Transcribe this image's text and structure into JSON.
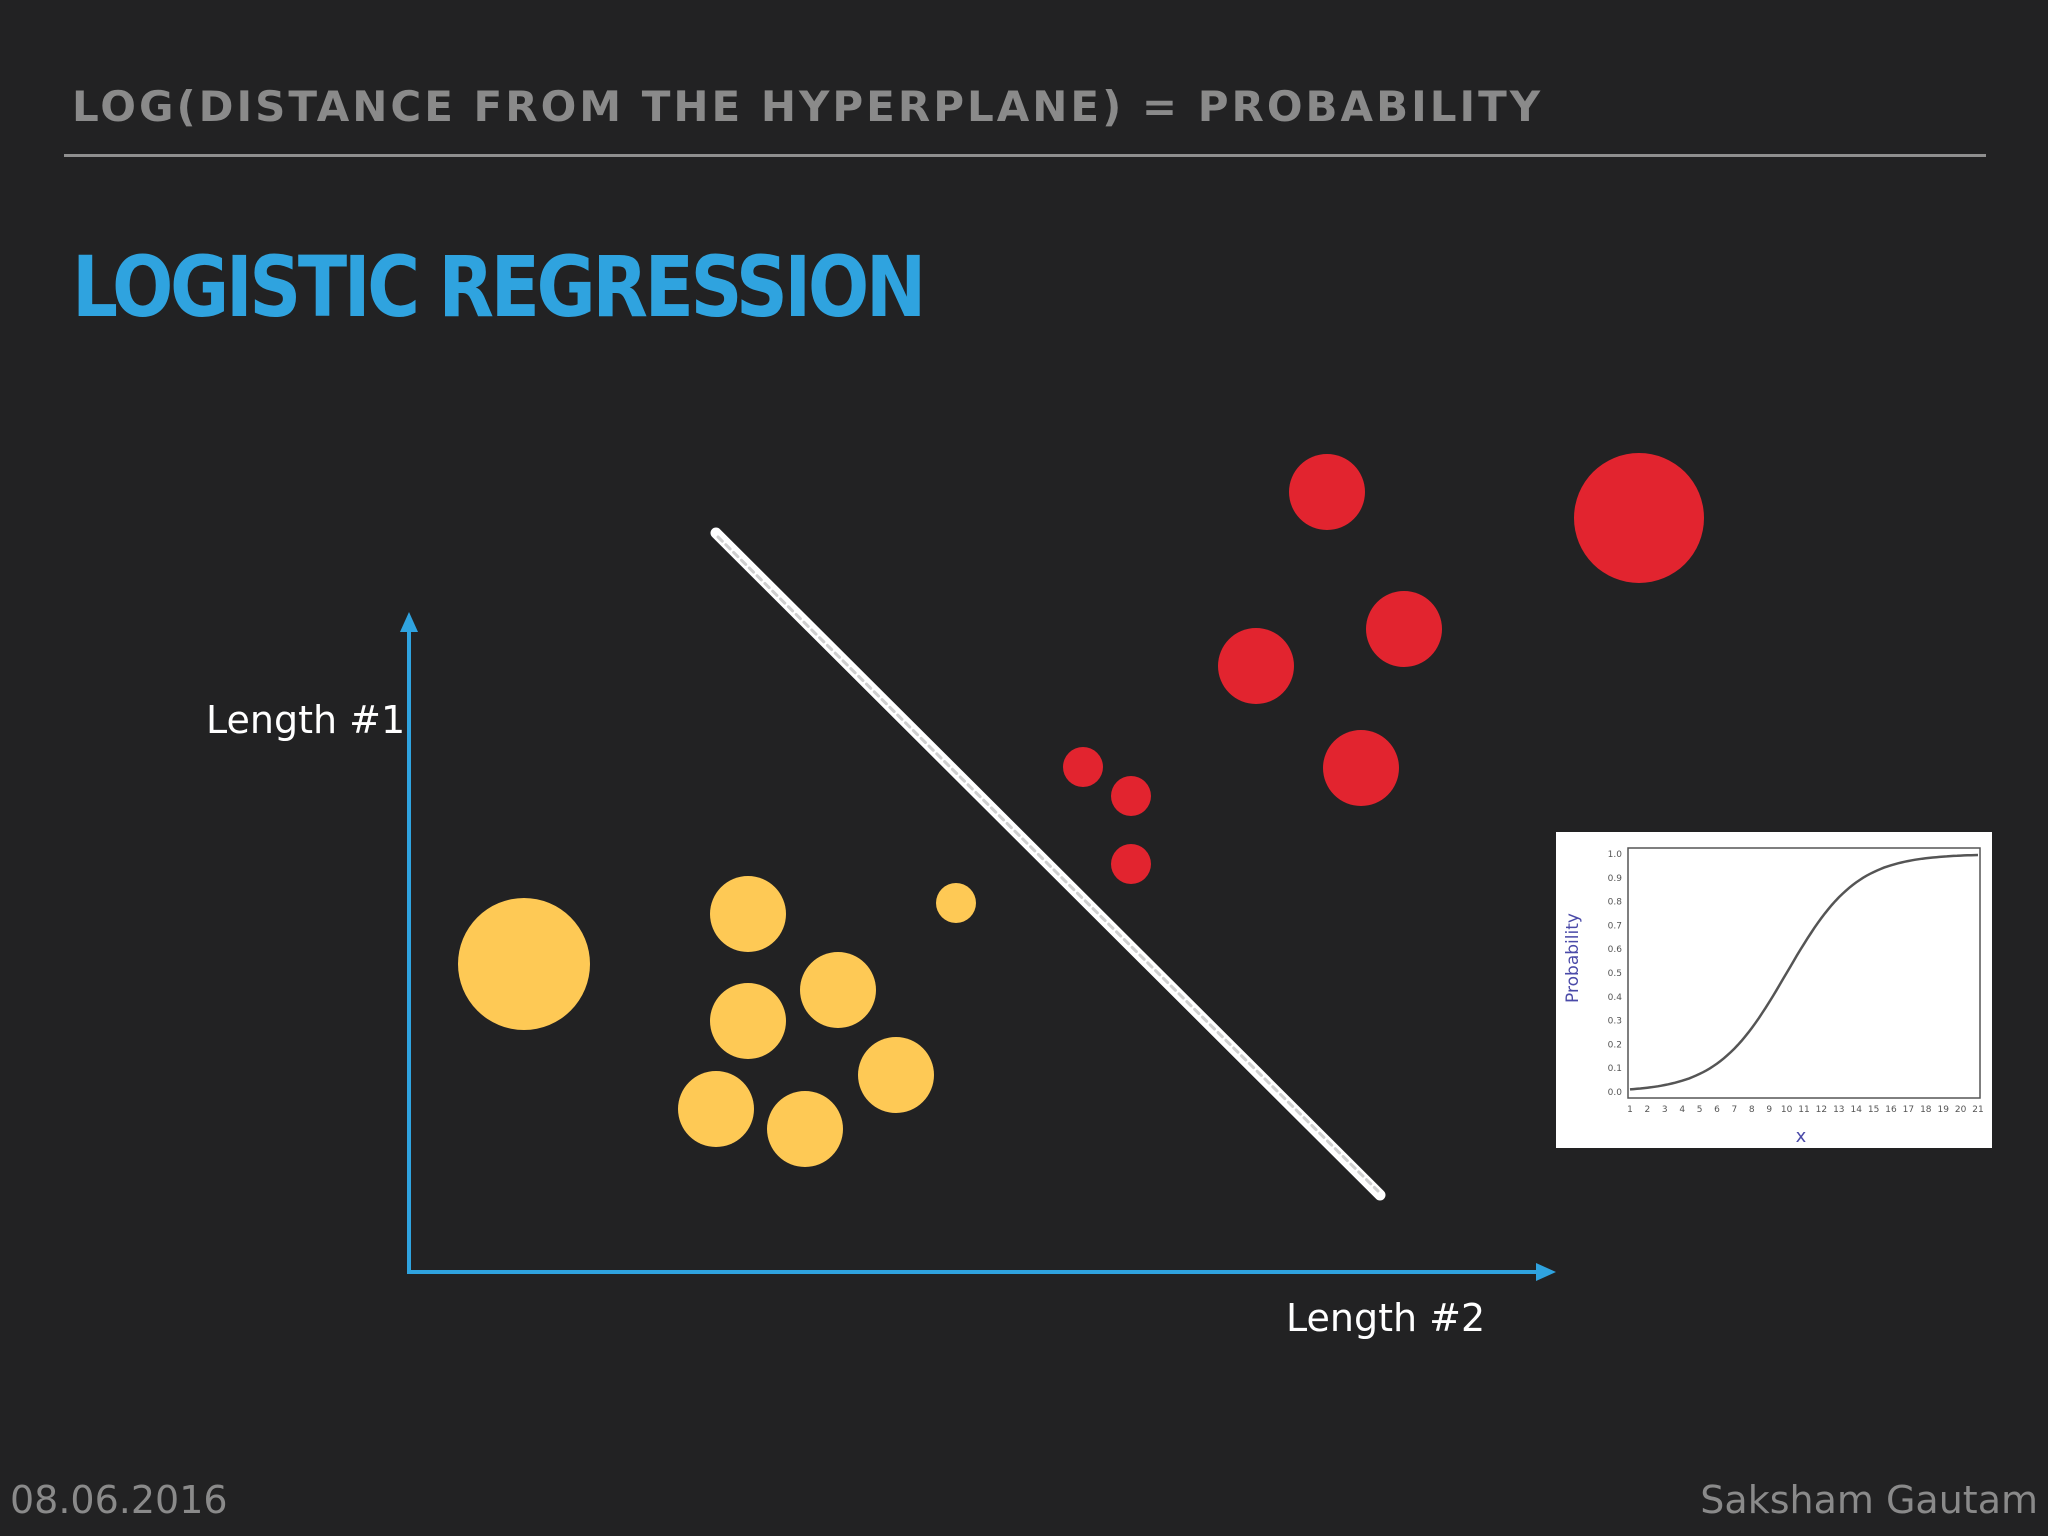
{
  "header": {
    "title": "LOG(DISTANCE FROM THE HYPERPLANE) = PROBABILITY"
  },
  "slide": {
    "title": "LOGISTIC REGRESSION"
  },
  "diagram": {
    "y_axis_label": "Length #1",
    "x_axis_label": "Length #2",
    "colors": {
      "axis": "#2fa3df",
      "class_a": "#fec955",
      "class_b": "#e2242f",
      "hyperplane": "#ffffff"
    }
  },
  "inset_chart": {
    "ylabel": "Probability",
    "xlabel": "x",
    "y_ticks": [
      "0.0",
      "0.1",
      "0.2",
      "0.3",
      "0.4",
      "0.5",
      "0.6",
      "0.7",
      "0.8",
      "0.9",
      "1.0"
    ],
    "x_ticks": [
      "1",
      "2",
      "3",
      "4",
      "5",
      "6",
      "7",
      "8",
      "9",
      "10",
      "11",
      "12",
      "13",
      "14",
      "15",
      "16",
      "17",
      "18",
      "19",
      "20",
      "21"
    ]
  },
  "footer": {
    "date": "08.06.2016",
    "author": "Saksham Gautam"
  }
}
